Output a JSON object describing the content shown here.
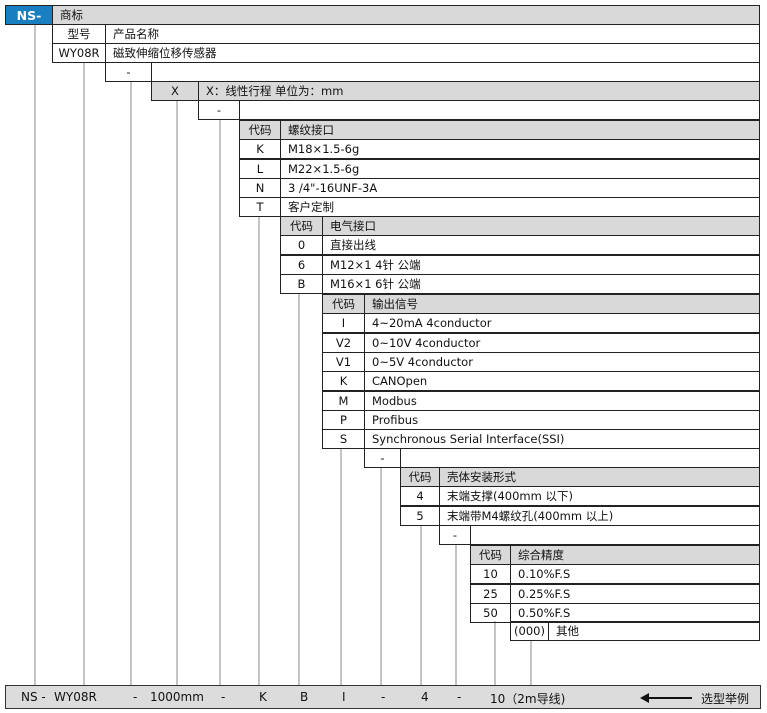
{
  "brand": {
    "prefix": "NS-",
    "header": "商标",
    "color": "#1a7fc1"
  },
  "model": {
    "code_header": "型号",
    "name_header": "产品名称",
    "code": "WY08R",
    "name": "磁致伸缩位移传感器"
  },
  "separator": "-",
  "stroke": {
    "code": "X",
    "desc": "X：线性行程 单位为：mm"
  },
  "sections": [
    {
      "code_header": "代码",
      "title": "螺纹接口",
      "options": [
        {
          "code": "K",
          "desc": "M18×1.5-6g"
        },
        {
          "code": "L",
          "desc": "M22×1.5-6g"
        },
        {
          "code": "N",
          "desc": "3 /4\"-16UNF-3A"
        },
        {
          "code": "T",
          "desc": "客户定制"
        }
      ]
    },
    {
      "code_header": "代码",
      "title": "电气接口",
      "options": [
        {
          "code": "0",
          "desc": "直接出线"
        },
        {
          "code": "6",
          "desc": "M12×1 4针 公端"
        },
        {
          "code": "B",
          "desc": "M16×1 6针 公端"
        }
      ]
    },
    {
      "code_header": "代码",
      "title": "输出信号",
      "options": [
        {
          "code": "I",
          "desc": "4~20mA  4conductor"
        },
        {
          "code": "V2",
          "desc": "0~10V     4conductor"
        },
        {
          "code": "V1",
          "desc": "0~5V       4conductor"
        },
        {
          "code": "K",
          "desc": "CANOpen"
        },
        {
          "code": "M",
          "desc": "Modbus"
        },
        {
          "code": "P",
          "desc": "Profibus"
        },
        {
          "code": "S",
          "desc": "Synchronous Serial Interface(SSI)"
        }
      ]
    },
    {
      "code_header": "代码",
      "title": "壳体安装形式",
      "options": [
        {
          "code": "4",
          "desc": "末端支撑(400mm 以下)"
        },
        {
          "code": "5",
          "desc": "末端带M4螺纹孔(400mm 以上)"
        }
      ]
    },
    {
      "code_header": "代码",
      "title": "综合精度",
      "options": [
        {
          "code": "10",
          "desc": "0.10%F.S"
        },
        {
          "code": "25",
          "desc": "0.25%F.S"
        },
        {
          "code": "50",
          "desc": "0.50%F.S"
        },
        {
          "code": "(000)",
          "desc": "其他"
        }
      ]
    }
  ],
  "example": {
    "parts": [
      "NS -",
      "WY08R",
      "-",
      "1000mm",
      "-",
      "K",
      "B",
      "I",
      "-",
      "4",
      "-",
      "10（2m导线)"
    ],
    "label": "选型举例",
    "arrow_icon": "left-arrow"
  }
}
